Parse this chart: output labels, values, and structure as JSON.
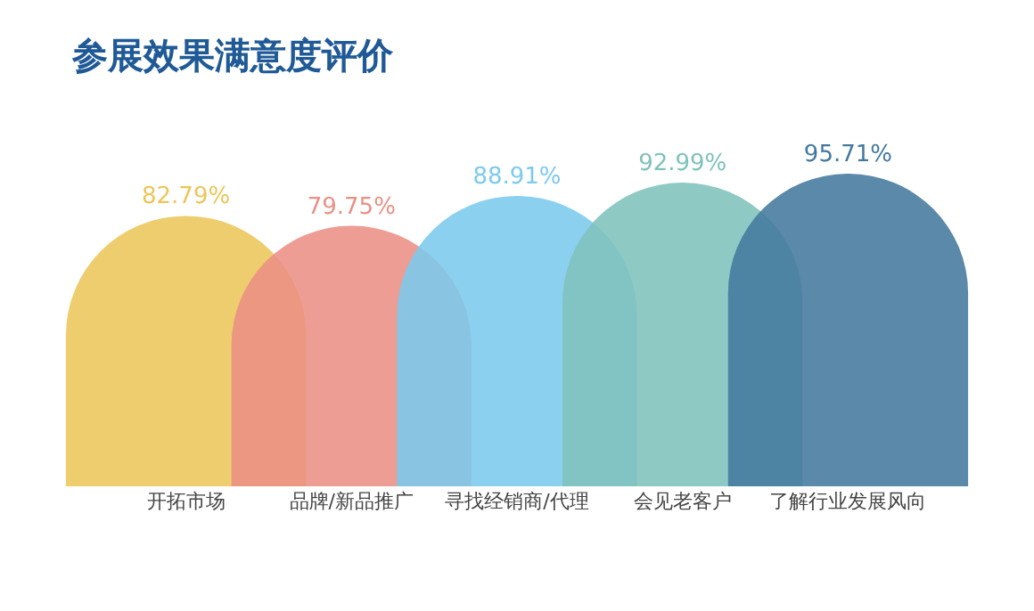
{
  "chart_data": {
    "type": "bar",
    "title": "参展效果满意度评价",
    "categories": [
      "开拓市场",
      "品牌/新品推广",
      "寻找经销商/代理",
      "会见老客户",
      "了解行业发展风向"
    ],
    "values": [
      82.79,
      79.75,
      88.91,
      92.99,
      95.71
    ],
    "value_labels": [
      "82.79%",
      "79.75%",
      "88.91%",
      "92.99%",
      "95.71%"
    ],
    "colors": [
      "#ecc65a",
      "#ea9085",
      "#7ccaee",
      "#7fc2bc",
      "#44799e"
    ],
    "grid": false
  }
}
